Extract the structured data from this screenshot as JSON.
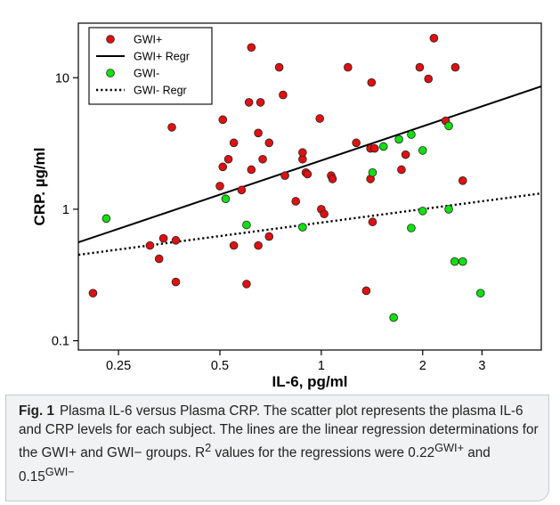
{
  "figure": {
    "caption_label": "Fig. 1",
    "caption_text": "Plasma IL-6 versus Plasma CRP. The scatter plot represents the plasma IL-6 and CRP levels for each subject. The lines are the linear regression determinations for the GWI+ and GWI− groups. R",
    "caption_sup_2": "2",
    "caption_mid": " values for the regressions were 0.22",
    "caption_sup_gwi_plus": "GWI+",
    "caption_and": " and 0.15",
    "caption_sup_gwi_minus": "GWI−"
  },
  "chart_data": {
    "type": "scatter",
    "title": "",
    "xlabel": "IL-6, pg/ml",
    "ylabel": "CRP. µg/ml",
    "xscale": "log",
    "yscale": "log",
    "xlim": [
      0.19,
      4.5
    ],
    "ylim": [
      0.085,
      26
    ],
    "xticks": [
      0.25,
      0.5,
      1,
      2,
      3
    ],
    "xtick_labels": [
      "0.25",
      "0.5",
      "1",
      "2",
      "3"
    ],
    "yticks": [
      0.1,
      1,
      10
    ],
    "ytick_labels": [
      "0.1",
      "1",
      "10"
    ],
    "grid": false,
    "legend_position": "top-left",
    "legend": [
      {
        "label": "GWI+",
        "kind": "marker",
        "color": "#e01010"
      },
      {
        "label": "GWI+ Regr",
        "kind": "solid-line",
        "color": "#000000"
      },
      {
        "label": "GWI-",
        "kind": "marker",
        "color": "#10e010"
      },
      {
        "label": "GWI- Regr",
        "kind": "dotted-line",
        "color": "#000000"
      }
    ],
    "series": [
      {
        "name": "GWI+",
        "color": "#e01010",
        "points": [
          [
            0.21,
            0.23
          ],
          [
            0.31,
            0.53
          ],
          [
            0.33,
            0.42
          ],
          [
            0.34,
            0.6
          ],
          [
            0.36,
            4.2
          ],
          [
            0.37,
            0.28
          ],
          [
            0.37,
            0.58
          ],
          [
            0.5,
            1.5
          ],
          [
            0.51,
            2.1
          ],
          [
            0.51,
            4.8
          ],
          [
            0.53,
            2.4
          ],
          [
            0.55,
            3.2
          ],
          [
            0.55,
            0.53
          ],
          [
            0.58,
            1.4
          ],
          [
            0.6,
            0.27
          ],
          [
            0.61,
            6.5
          ],
          [
            0.62,
            2.0
          ],
          [
            0.62,
            17.0
          ],
          [
            0.65,
            0.53
          ],
          [
            0.65,
            3.8
          ],
          [
            0.66,
            6.5
          ],
          [
            0.67,
            2.4
          ],
          [
            0.7,
            0.62
          ],
          [
            0.7,
            3.2
          ],
          [
            0.75,
            12.0
          ],
          [
            0.77,
            7.4
          ],
          [
            0.78,
            1.8
          ],
          [
            0.84,
            1.15
          ],
          [
            0.88,
            2.4
          ],
          [
            0.88,
            2.7
          ],
          [
            0.9,
            1.9
          ],
          [
            0.91,
            1.85
          ],
          [
            0.99,
            4.9
          ],
          [
            1.0,
            1.0
          ],
          [
            1.02,
            0.92
          ],
          [
            1.07,
            1.8
          ],
          [
            1.08,
            1.7
          ],
          [
            1.2,
            12.0
          ],
          [
            1.27,
            3.2
          ],
          [
            1.36,
            0.24
          ],
          [
            1.4,
            2.9
          ],
          [
            1.4,
            1.7
          ],
          [
            1.41,
            9.2
          ],
          [
            1.42,
            0.8
          ],
          [
            1.44,
            2.9
          ],
          [
            1.73,
            2.0
          ],
          [
            1.78,
            2.6
          ],
          [
            1.96,
            12.0
          ],
          [
            2.08,
            9.8
          ],
          [
            2.16,
            20.0
          ],
          [
            2.34,
            4.7
          ],
          [
            2.5,
            12.0
          ],
          [
            2.63,
            1.65
          ]
        ]
      },
      {
        "name": "GWI-",
        "color": "#10e010",
        "points": [
          [
            0.23,
            0.85
          ],
          [
            0.52,
            1.2
          ],
          [
            0.6,
            0.76
          ],
          [
            0.88,
            0.73
          ],
          [
            1.42,
            1.9
          ],
          [
            1.53,
            3.0
          ],
          [
            1.64,
            0.15
          ],
          [
            1.7,
            3.4
          ],
          [
            1.85,
            3.7
          ],
          [
            1.85,
            0.72
          ],
          [
            2.0,
            0.97
          ],
          [
            2.0,
            2.8
          ],
          [
            2.39,
            4.3
          ],
          [
            2.39,
            1.0
          ],
          [
            2.49,
            0.4
          ],
          [
            2.63,
            0.4
          ],
          [
            2.97,
            0.23
          ]
        ]
      }
    ],
    "regressions": [
      {
        "name": "GWI+ Regr",
        "style": "solid",
        "x": [
          0.19,
          4.5
        ],
        "y": [
          0.56,
          8.6
        ]
      },
      {
        "name": "GWI- Regr",
        "style": "dotted",
        "x": [
          0.19,
          4.5
        ],
        "y": [
          0.45,
          1.32
        ]
      }
    ]
  }
}
